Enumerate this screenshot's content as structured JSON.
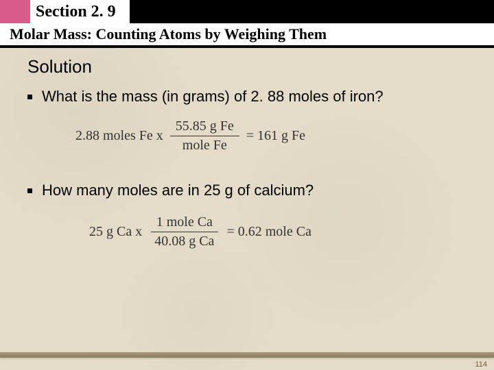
{
  "header": {
    "section_label": "Section 2. 9",
    "subtitle": "Molar Mass: Counting Atoms by Weighing Them",
    "accent_color": "#d95b8a"
  },
  "solution": {
    "heading": "Solution",
    "q1": {
      "text": "What is the mass (in grams) of 2. 88 moles of iron?",
      "eq_lhs": "2.88 moles Fe x",
      "frac_num": "55.85 g Fe",
      "frac_den": "mole Fe",
      "eq_rhs": "=   161 g Fe"
    },
    "q2": {
      "text": "How many moles are in 25 g of calcium?",
      "eq_lhs": "25 g Ca x",
      "frac_num": "1 mole Ca",
      "frac_den": "40.08 g Ca",
      "eq_rhs": "=   0.62 mole Ca"
    }
  },
  "page_number": "114",
  "style": {
    "background_color": "#e4dcc8",
    "header_bg": "#000000",
    "text_color": "#000000",
    "eq_color": "#333333",
    "footer_bar_color": "#8a7a5e",
    "heading_fontsize": 26,
    "body_fontsize": 22,
    "eq_fontsize": 20,
    "section_title_fontsize": 24,
    "subtitle_fontsize": 22
  }
}
